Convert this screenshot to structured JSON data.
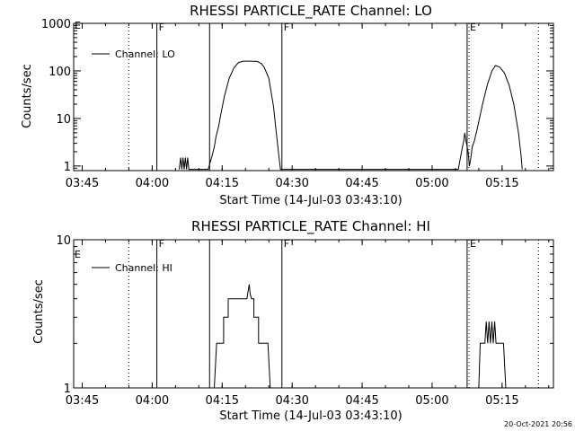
{
  "chart_data": [
    {
      "type": "line",
      "title": "RHESSI PARTICLE_RATE Channel: LO",
      "xlabel": "Start Time (14-Jul-03 03:43:10)",
      "ylabel": "Counts/sec",
      "yscale": "log",
      "ylim": [
        0.8,
        1000
      ],
      "xlim_minutes": [
        223.17,
        326.0
      ],
      "x_ticks": [
        {
          "t": 225,
          "label": "03:45"
        },
        {
          "t": 240,
          "label": "04:00"
        },
        {
          "t": 255,
          "label": "04:15"
        },
        {
          "t": 270,
          "label": "04:30"
        },
        {
          "t": 285,
          "label": "04:45"
        },
        {
          "t": 300,
          "label": "05:00"
        },
        {
          "t": 315,
          "label": "05:15"
        }
      ],
      "y_ticks": [
        {
          "v": 1,
          "label": "1"
        },
        {
          "v": 10,
          "label": "10"
        },
        {
          "v": 100,
          "label": "100"
        },
        {
          "v": 1000,
          "label": "1000"
        }
      ],
      "legend": {
        "label": "Channel: LO",
        "position": "top-left"
      },
      "solid_markers": [
        {
          "t": 241.0,
          "label": "F"
        },
        {
          "t": 252.3,
          "label": ""
        },
        {
          "t": 267.8,
          "label": "F"
        },
        {
          "t": 307.5,
          "label": ""
        }
      ],
      "dotted_markers": [
        {
          "t": 235.0,
          "label": ""
        },
        {
          "t": 307.9,
          "label": "E"
        },
        {
          "t": 322.8,
          "label": ""
        }
      ],
      "edge_marker": {
        "label": "E"
      },
      "series": [
        {
          "name": "Channel: LO",
          "points": [
            [
              245.8,
              0.85
            ],
            [
              246.1,
              1.5
            ],
            [
              246.35,
              0.85
            ],
            [
              246.6,
              1.5
            ],
            [
              246.85,
              0.85
            ],
            [
              247.1,
              1.5
            ],
            [
              247.35,
              0.85
            ],
            [
              247.6,
              1.5
            ],
            [
              247.85,
              0.85
            ],
            [
              252.0,
              0.85
            ],
            [
              252.8,
              1.6
            ],
            [
              253.3,
              2.5
            ],
            [
              253.7,
              4.2
            ],
            [
              254.2,
              6.5
            ],
            [
              254.7,
              12
            ],
            [
              255.5,
              30
            ],
            [
              256.5,
              70
            ],
            [
              257.5,
              115
            ],
            [
              258.5,
              150
            ],
            [
              259.5,
              160
            ],
            [
              261,
              160
            ],
            [
              262.5,
              158
            ],
            [
              263.3,
              145
            ],
            [
              264,
              120
            ],
            [
              265,
              70
            ],
            [
              266,
              18
            ],
            [
              266.7,
              4
            ],
            [
              267.2,
              1.5
            ],
            [
              267.5,
              0.85
            ],
            [
              305.6,
              0.85
            ],
            [
              306.3,
              2
            ],
            [
              306.8,
              3.5
            ],
            [
              307.0,
              5
            ],
            [
              307.3,
              3.2
            ],
            [
              307.7,
              2
            ],
            [
              308.0,
              1.0
            ],
            [
              308.3,
              1.5
            ],
            [
              308.6,
              2.5
            ],
            [
              309.1,
              3.5
            ],
            [
              309.8,
              7
            ],
            [
              310.8,
              20
            ],
            [
              311.8,
              50
            ],
            [
              312.8,
              100
            ],
            [
              313.6,
              130
            ],
            [
              314.5,
              120
            ],
            [
              315.5,
              90
            ],
            [
              316.5,
              50
            ],
            [
              317.5,
              20
            ],
            [
              318.5,
              5
            ],
            [
              319.1,
              1.5
            ],
            [
              319.3,
              0.85
            ]
          ]
        }
      ]
    },
    {
      "type": "line",
      "title": "RHESSI PARTICLE_RATE Channel: HI",
      "xlabel": "Start Time (14-Jul-03 03:43:10)",
      "ylabel": "Counts/sec",
      "yscale": "log",
      "ylim": [
        1,
        10
      ],
      "xlim_minutes": [
        223.17,
        326.0
      ],
      "x_ticks": [
        {
          "t": 225,
          "label": "03:45"
        },
        {
          "t": 240,
          "label": "04:00"
        },
        {
          "t": 255,
          "label": "04:15"
        },
        {
          "t": 270,
          "label": "04:30"
        },
        {
          "t": 285,
          "label": "04:45"
        },
        {
          "t": 300,
          "label": "05:00"
        },
        {
          "t": 315,
          "label": "05:15"
        }
      ],
      "y_ticks": [
        {
          "v": 1,
          "label": "1"
        },
        {
          "v": 10,
          "label": "10"
        }
      ],
      "legend": {
        "label": "Channel: HI",
        "position": "top-left"
      },
      "solid_markers": [
        {
          "t": 241.0,
          "label": "F"
        },
        {
          "t": 252.3,
          "label": ""
        },
        {
          "t": 267.8,
          "label": "F"
        },
        {
          "t": 307.5,
          "label": ""
        }
      ],
      "dotted_markers": [
        {
          "t": 235.0,
          "label": ""
        },
        {
          "t": 307.9,
          "label": "E"
        },
        {
          "t": 322.8,
          "label": ""
        }
      ],
      "edge_marker": {
        "label": "E"
      },
      "series": [
        {
          "name": "Channel: HI",
          "points": [
            [
              253.3,
              1.0
            ],
            [
              253.8,
              2
            ],
            [
              255.3,
              2
            ],
            [
              255.3,
              3
            ],
            [
              256.3,
              3
            ],
            [
              256.3,
              4
            ],
            [
              260.3,
              4
            ],
            [
              260.8,
              5
            ],
            [
              261.0,
              4.3
            ],
            [
              261.3,
              4
            ],
            [
              261.8,
              4
            ],
            [
              261.8,
              3
            ],
            [
              262.8,
              3
            ],
            [
              262.8,
              2
            ],
            [
              264.8,
              2
            ],
            [
              265.3,
              1.0
            ],
            [
              310.0,
              1.0
            ],
            [
              310.3,
              2
            ],
            [
              311.3,
              2
            ],
            [
              311.6,
              2.8
            ],
            [
              311.9,
              2
            ],
            [
              312.2,
              2.8
            ],
            [
              312.5,
              2
            ],
            [
              312.8,
              2.8
            ],
            [
              313.1,
              2
            ],
            [
              313.4,
              2.8
            ],
            [
              313.7,
              2
            ],
            [
              315.3,
              2
            ],
            [
              315.8,
              1.0
            ]
          ]
        }
      ]
    }
  ],
  "timestamp": "20-Oct-2021 20:56"
}
